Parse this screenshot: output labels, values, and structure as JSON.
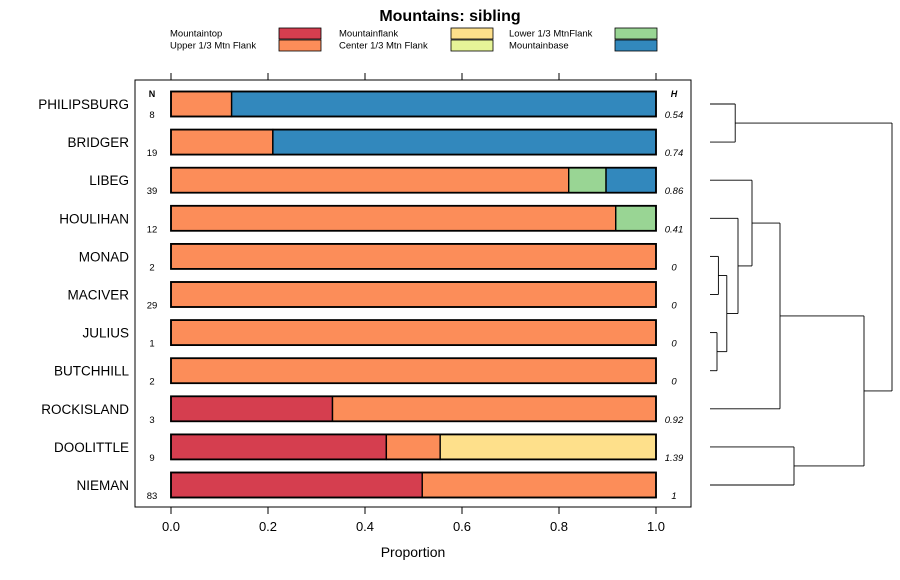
{
  "chart_data": {
    "type": "bar",
    "orientation": "horizontal",
    "stacked": true,
    "title": "Mountains: sibling",
    "xlabel": "Proportion",
    "xlim": [
      0,
      1
    ],
    "xticks": [
      "0.0",
      "0.2",
      "0.4",
      "0.6",
      "0.8",
      "1.0"
    ],
    "tickvals": [
      0,
      0.2,
      0.4,
      0.6,
      0.8,
      1.0
    ],
    "n_header": "N",
    "h_header": "H",
    "legend": [
      {
        "label": "Mountaintop",
        "color": "#D53E4F"
      },
      {
        "label": "Upper 1/3 Mtn Flank",
        "color": "#FC8D59"
      },
      {
        "label": "Mountainflank",
        "color": "#FEE08B"
      },
      {
        "label": "Center 1/3 Mtn Flank",
        "color": "#E6F598"
      },
      {
        "label": "Lower 1/3 MtnFlank",
        "color": "#99D594"
      },
      {
        "label": "Mountainbase",
        "color": "#3288BD"
      }
    ],
    "series_order": [
      "Mountaintop",
      "Upper 1/3 Mtn Flank",
      "Mountainflank",
      "Center 1/3 Mtn Flank",
      "Lower 1/3 MtnFlank",
      "Mountainbase"
    ],
    "rows": [
      {
        "name": "PHILIPSBURG",
        "n": "8",
        "h": "0.54",
        "values": [
          0,
          0.125,
          0,
          0,
          0,
          0.875
        ]
      },
      {
        "name": "BRIDGER",
        "n": "19",
        "h": "0.74",
        "values": [
          0,
          0.21,
          0,
          0,
          0,
          0.79
        ]
      },
      {
        "name": "LIBEG",
        "n": "39",
        "h": "0.86",
        "values": [
          0,
          0.82,
          0,
          0,
          0.077,
          0.103
        ]
      },
      {
        "name": "HOULIHAN",
        "n": "12",
        "h": "0.41",
        "values": [
          0,
          0.917,
          0,
          0,
          0.083,
          0
        ]
      },
      {
        "name": "MONAD",
        "n": "2",
        "h": "0",
        "values": [
          0,
          1,
          0,
          0,
          0,
          0
        ]
      },
      {
        "name": "MACIVER",
        "n": "29",
        "h": "0",
        "values": [
          0,
          1,
          0,
          0,
          0,
          0
        ]
      },
      {
        "name": "JULIUS",
        "n": "1",
        "h": "0",
        "values": [
          0,
          1,
          0,
          0,
          0,
          0
        ]
      },
      {
        "name": "BUTCHHILL",
        "n": "2",
        "h": "0",
        "values": [
          0,
          1,
          0,
          0,
          0,
          0
        ]
      },
      {
        "name": "ROCKISLAND",
        "n": "3",
        "h": "0.92",
        "values": [
          0.333,
          0.667,
          0,
          0,
          0,
          0
        ]
      },
      {
        "name": "DOOLITTLE",
        "n": "9",
        "h": "1.39",
        "values": [
          0.444,
          0.111,
          0.445,
          0,
          0,
          0
        ]
      },
      {
        "name": "NIEMAN",
        "n": "83",
        "h": "1",
        "values": [
          0.518,
          0.482,
          0,
          0,
          0,
          0
        ]
      }
    ],
    "dendrogram": {
      "leaf_order": [
        "PHILIPSBURG",
        "BRIDGER",
        "LIBEG",
        "HOULIHAN",
        "MONAD",
        "MACIVER",
        "JULIUS",
        "BUTCHHILL",
        "ROCKISLAND",
        "DOOLITTLE",
        "NIEMAN"
      ],
      "merges": [
        {
          "a": "JULIUS",
          "b": "BUTCHHILL",
          "height": 0.05
        },
        {
          "a": "MONAD",
          "b": "MACIVER",
          "height": 0.06
        },
        {
          "a": "c0",
          "b": "c1",
          "height": 0.12
        },
        {
          "a": "HOULIHAN",
          "b": "c2",
          "height": 0.2
        },
        {
          "a": "LIBEG",
          "b": "c3",
          "height": 0.3
        },
        {
          "a": "PHILIPSBURG",
          "b": "BRIDGER",
          "height": 0.18
        },
        {
          "a": "c4",
          "b": "ROCKISLAND",
          "height": 0.5
        },
        {
          "a": "DOOLITTLE",
          "b": "NIEMAN",
          "height": 0.6
        },
        {
          "a": "c6",
          "b": "c7",
          "height": 1.1
        },
        {
          "a": "c5",
          "b": "c8",
          "height": 1.3
        }
      ]
    }
  }
}
